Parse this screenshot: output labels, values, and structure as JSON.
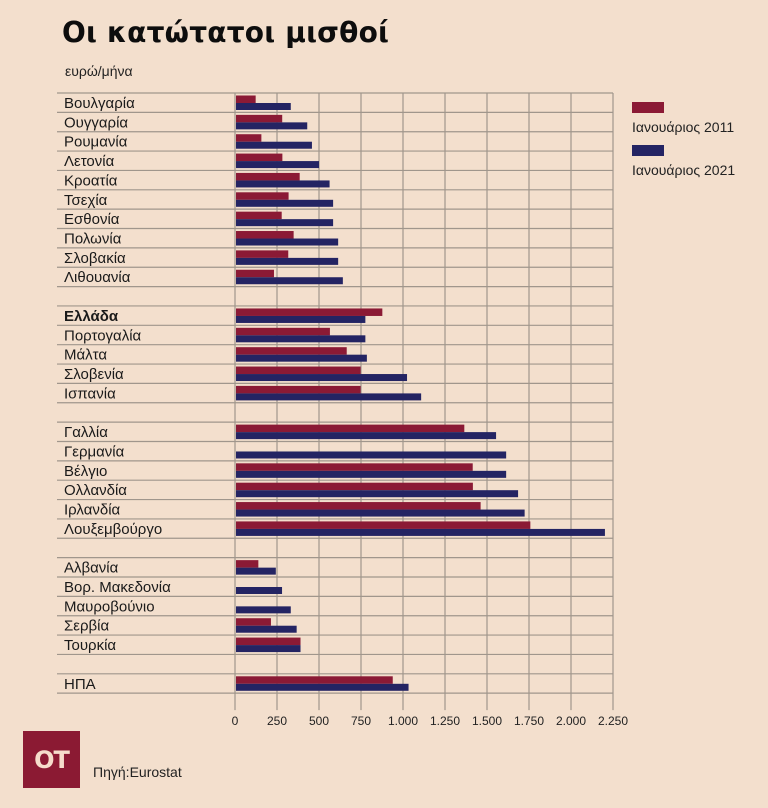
{
  "colors": {
    "background": "#f3dfcd",
    "series_2011": "#8b1a35",
    "series_2021": "#242463",
    "grid": "#a0968c",
    "logo_bg": "#8b1a33",
    "logo_text": "#f6dccb"
  },
  "logo": {
    "text": "OT"
  },
  "source": "Πηγή:Eurostat",
  "chart_data": {
    "type": "bar",
    "orientation": "horizontal",
    "title": "Οι κατώτατοι μισθοί",
    "ylabel": "ευρώ/μήνα",
    "xlabel": "",
    "xlim": [
      0,
      2250
    ],
    "xticks": [
      0,
      250,
      500,
      750,
      1000,
      1250,
      1500,
      1750,
      2000,
      2250
    ],
    "xtick_labels": [
      "0",
      "250",
      "500",
      "750",
      "1.000",
      "1.250",
      "1.500",
      "1.750",
      "2.000",
      "2.250"
    ],
    "grid": true,
    "legend_position": "top-right",
    "series": [
      {
        "name": "Ιανουάριος 2011",
        "color": "#8b1a35"
      },
      {
        "name": "Ιανουάριος 2021",
        "color": "#242463"
      }
    ],
    "groups": [
      {
        "rows": [
          {
            "label": "Βουλγαρία",
            "values": [
              123,
              332
            ]
          },
          {
            "label": "Ουγγαρία",
            "values": [
              281,
              430
            ]
          },
          {
            "label": "Ρουμανία",
            "values": [
              157,
              458
            ]
          },
          {
            "label": "Λετονία",
            "values": [
              282,
              500
            ]
          },
          {
            "label": "Κροατία",
            "values": [
              385,
              563
            ]
          },
          {
            "label": "Τσεχία",
            "values": [
              319,
              584
            ]
          },
          {
            "label": "Εσθονία",
            "values": [
              278,
              584
            ]
          },
          {
            "label": "Πολωνία",
            "values": [
              349,
              614
            ]
          },
          {
            "label": "Σλοβακία",
            "values": [
              317,
              614
            ]
          },
          {
            "label": "Λιθουανία",
            "values": [
              232,
              642
            ]
          }
        ]
      },
      {
        "rows": [
          {
            "label": "Ελλάδα",
            "values": [
              877,
              776
            ],
            "bold": true
          },
          {
            "label": "Πορτογαλία",
            "values": [
              565,
              776
            ]
          },
          {
            "label": "Μάλτα",
            "values": [
              665,
              785
            ]
          },
          {
            "label": "Σλοβενία",
            "values": [
              748,
              1024
            ]
          },
          {
            "label": "Ισπανία",
            "values": [
              748,
              1108
            ]
          }
        ]
      },
      {
        "rows": [
          {
            "label": "Γαλλία",
            "values": [
              1365,
              1554
            ]
          },
          {
            "label": "Γερμανία",
            "values": [
              null,
              1614
            ]
          },
          {
            "label": "Βέλγιο",
            "values": [
              1415,
              1614
            ]
          },
          {
            "label": "Ολλανδία",
            "values": [
              1416,
              1685
            ]
          },
          {
            "label": "Ιρλανδία",
            "values": [
              1462,
              1724
            ]
          },
          {
            "label": "Λουξεμβούργο",
            "values": [
              1758,
              2202
            ]
          }
        ]
      },
      {
        "rows": [
          {
            "label": "Αλβανία",
            "values": [
              139,
              243
            ]
          },
          {
            "label": "Βορ. Μακεδονία",
            "values": [
              null,
              280
            ]
          },
          {
            "label": "Μαυροβούνιο",
            "values": [
              null,
              332
            ]
          },
          {
            "label": "Σερβία",
            "values": [
              214,
              367
            ]
          },
          {
            "label": "Τουρκία",
            "values": [
              390,
              390
            ]
          }
        ]
      },
      {
        "rows": [
          {
            "label": "ΗΠΑ",
            "values": [
              939,
              1033
            ]
          }
        ]
      }
    ]
  }
}
